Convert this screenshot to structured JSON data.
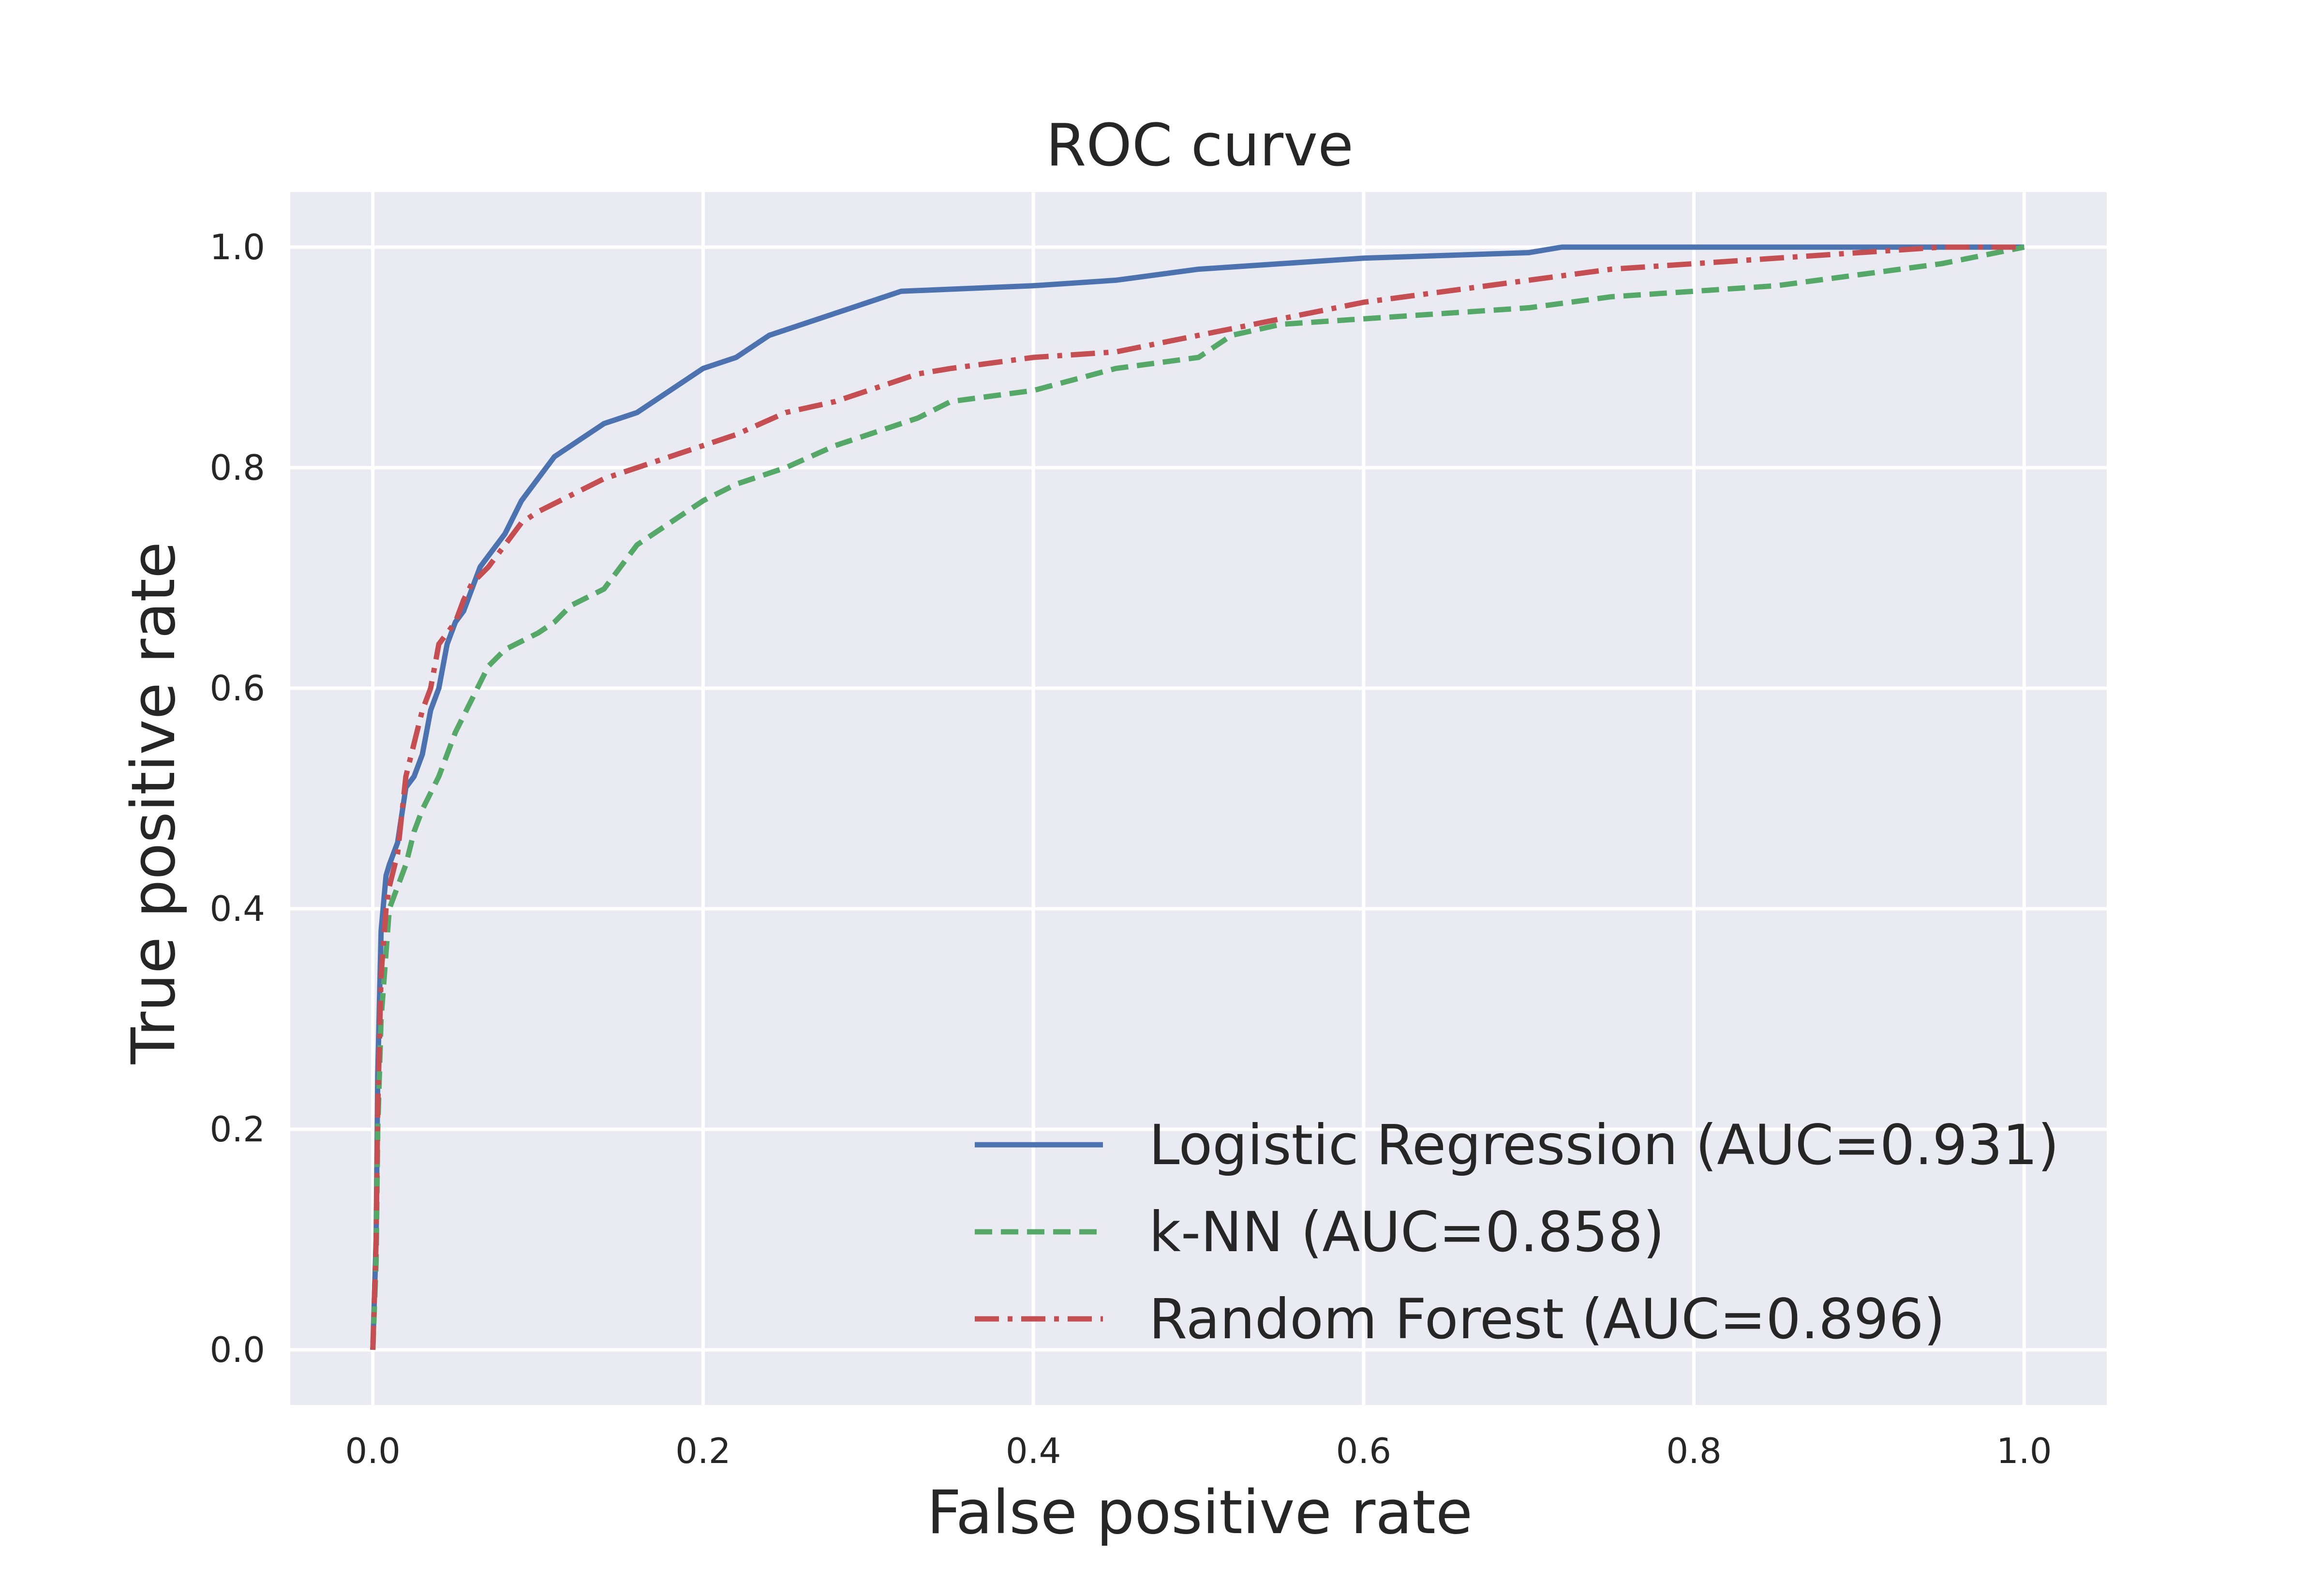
{
  "chart_data": {
    "type": "line",
    "title": "ROC curve",
    "xlabel": "False positive rate",
    "ylabel": "True positive rate",
    "xlim": [
      -0.05,
      1.05
    ],
    "ylim": [
      -0.05,
      1.05
    ],
    "xticks": [
      "0.0",
      "0.2",
      "0.4",
      "0.6",
      "0.8",
      "1.0"
    ],
    "yticks": [
      "0.0",
      "0.2",
      "0.4",
      "0.6",
      "0.8",
      "1.0"
    ],
    "grid": true,
    "legend_position": "lower-right",
    "colors": {
      "background": "#eaeaf2",
      "grid": "#ffffff",
      "logistic": "#4c72b0",
      "knn": "#55a868",
      "rf": "#c44e52"
    },
    "series": [
      {
        "name": "Logistic Regression (AUC=0.931)",
        "style": "solid",
        "points": [
          [
            0,
            0
          ],
          [
            0.002,
            0.1
          ],
          [
            0.003,
            0.25
          ],
          [
            0.005,
            0.38
          ],
          [
            0.008,
            0.43
          ],
          [
            0.01,
            0.44
          ],
          [
            0.015,
            0.46
          ],
          [
            0.02,
            0.51
          ],
          [
            0.025,
            0.52
          ],
          [
            0.03,
            0.54
          ],
          [
            0.035,
            0.58
          ],
          [
            0.04,
            0.6
          ],
          [
            0.045,
            0.64
          ],
          [
            0.05,
            0.66
          ],
          [
            0.055,
            0.67
          ],
          [
            0.06,
            0.69
          ],
          [
            0.065,
            0.71
          ],
          [
            0.07,
            0.72
          ],
          [
            0.08,
            0.74
          ],
          [
            0.09,
            0.77
          ],
          [
            0.1,
            0.79
          ],
          [
            0.11,
            0.81
          ],
          [
            0.12,
            0.82
          ],
          [
            0.13,
            0.83
          ],
          [
            0.14,
            0.84
          ],
          [
            0.16,
            0.85
          ],
          [
            0.18,
            0.87
          ],
          [
            0.2,
            0.89
          ],
          [
            0.22,
            0.9
          ],
          [
            0.24,
            0.92
          ],
          [
            0.26,
            0.93
          ],
          [
            0.28,
            0.94
          ],
          [
            0.3,
            0.95
          ],
          [
            0.32,
            0.96
          ],
          [
            0.4,
            0.965
          ],
          [
            0.45,
            0.97
          ],
          [
            0.5,
            0.98
          ],
          [
            0.6,
            0.99
          ],
          [
            0.7,
            0.995
          ],
          [
            0.72,
            1.0
          ],
          [
            0.85,
            1.0
          ],
          [
            1.0,
            1.0
          ]
        ]
      },
      {
        "name": "k-NN (AUC=0.858)",
        "style": "dashed",
        "points": [
          [
            0,
            0
          ],
          [
            0.002,
            0.08
          ],
          [
            0.003,
            0.2
          ],
          [
            0.005,
            0.3
          ],
          [
            0.008,
            0.36
          ],
          [
            0.01,
            0.4
          ],
          [
            0.015,
            0.42
          ],
          [
            0.02,
            0.44
          ],
          [
            0.025,
            0.47
          ],
          [
            0.03,
            0.49
          ],
          [
            0.04,
            0.52
          ],
          [
            0.05,
            0.56
          ],
          [
            0.06,
            0.59
          ],
          [
            0.07,
            0.62
          ],
          [
            0.08,
            0.635
          ],
          [
            0.1,
            0.65
          ],
          [
            0.11,
            0.66
          ],
          [
            0.12,
            0.675
          ],
          [
            0.14,
            0.69
          ],
          [
            0.15,
            0.71
          ],
          [
            0.16,
            0.73
          ],
          [
            0.18,
            0.75
          ],
          [
            0.2,
            0.77
          ],
          [
            0.22,
            0.785
          ],
          [
            0.25,
            0.8
          ],
          [
            0.28,
            0.82
          ],
          [
            0.3,
            0.83
          ],
          [
            0.33,
            0.845
          ],
          [
            0.35,
            0.86
          ],
          [
            0.4,
            0.87
          ],
          [
            0.45,
            0.89
          ],
          [
            0.5,
            0.9
          ],
          [
            0.52,
            0.92
          ],
          [
            0.55,
            0.93
          ],
          [
            0.6,
            0.935
          ],
          [
            0.65,
            0.94
          ],
          [
            0.7,
            0.945
          ],
          [
            0.75,
            0.955
          ],
          [
            0.8,
            0.96
          ],
          [
            0.85,
            0.965
          ],
          [
            0.9,
            0.975
          ],
          [
            0.95,
            0.985
          ],
          [
            1.0,
            1.0
          ]
        ]
      },
      {
        "name": "Random Forest (AUC=0.896)",
        "style": "dashdot",
        "points": [
          [
            0,
            0
          ],
          [
            0.002,
            0.1
          ],
          [
            0.003,
            0.22
          ],
          [
            0.005,
            0.34
          ],
          [
            0.008,
            0.4
          ],
          [
            0.01,
            0.42
          ],
          [
            0.015,
            0.45
          ],
          [
            0.02,
            0.52
          ],
          [
            0.025,
            0.55
          ],
          [
            0.03,
            0.58
          ],
          [
            0.035,
            0.6
          ],
          [
            0.04,
            0.64
          ],
          [
            0.045,
            0.65
          ],
          [
            0.05,
            0.66
          ],
          [
            0.055,
            0.68
          ],
          [
            0.06,
            0.695
          ],
          [
            0.07,
            0.71
          ],
          [
            0.08,
            0.73
          ],
          [
            0.09,
            0.75
          ],
          [
            0.1,
            0.76
          ],
          [
            0.12,
            0.775
          ],
          [
            0.14,
            0.79
          ],
          [
            0.16,
            0.8
          ],
          [
            0.18,
            0.81
          ],
          [
            0.2,
            0.82
          ],
          [
            0.22,
            0.83
          ],
          [
            0.25,
            0.85
          ],
          [
            0.28,
            0.86
          ],
          [
            0.3,
            0.87
          ],
          [
            0.33,
            0.885
          ],
          [
            0.35,
            0.89
          ],
          [
            0.4,
            0.9
          ],
          [
            0.45,
            0.905
          ],
          [
            0.5,
            0.92
          ],
          [
            0.55,
            0.935
          ],
          [
            0.6,
            0.95
          ],
          [
            0.65,
            0.96
          ],
          [
            0.7,
            0.97
          ],
          [
            0.75,
            0.98
          ],
          [
            0.8,
            0.985
          ],
          [
            0.85,
            0.99
          ],
          [
            0.9,
            0.995
          ],
          [
            0.95,
            1.0
          ],
          [
            1.0,
            1.0
          ]
        ]
      }
    ]
  }
}
